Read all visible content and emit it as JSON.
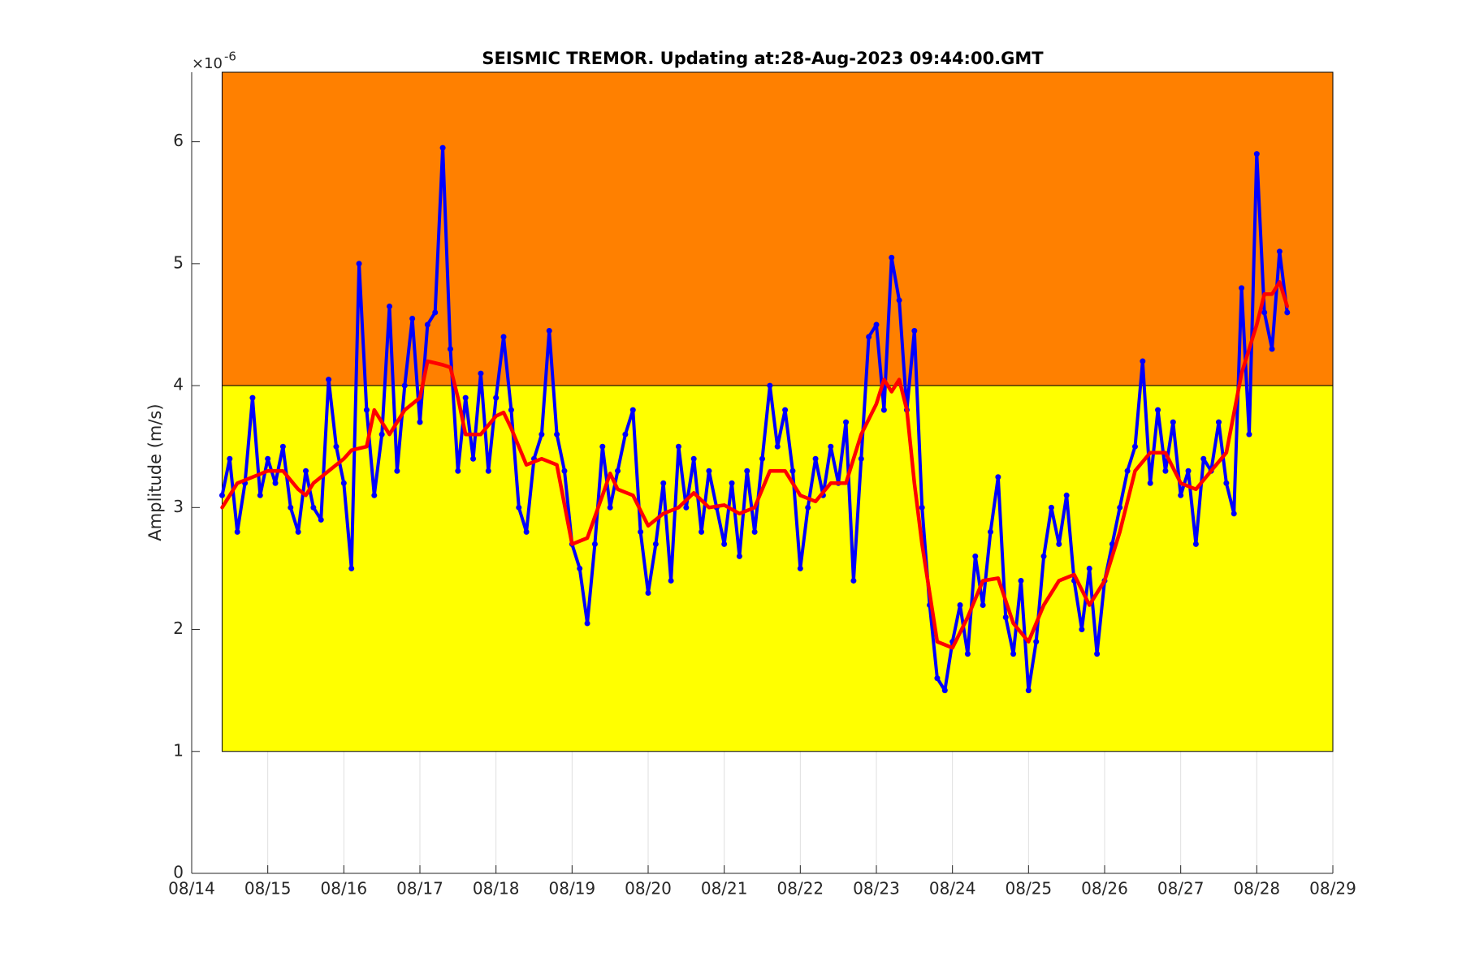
{
  "chart_data": {
    "type": "line",
    "title": "SEISMIC TREMOR. Updating at:28-Aug-2023 09:44:00.GMT",
    "y_label": "Amplitude (m/s)",
    "y_multiplier": {
      "base": "×10",
      "exponent": "-6"
    },
    "xlim": [
      14,
      29
    ],
    "xticks": [
      {
        "value": 14,
        "label": "08/14"
      },
      {
        "value": 15,
        "label": "08/15"
      },
      {
        "value": 16,
        "label": "08/16"
      },
      {
        "value": 17,
        "label": "08/17"
      },
      {
        "value": 18,
        "label": "08/18"
      },
      {
        "value": 19,
        "label": "08/19"
      },
      {
        "value": 20,
        "label": "08/20"
      },
      {
        "value": 21,
        "label": "08/21"
      },
      {
        "value": 22,
        "label": "08/22"
      },
      {
        "value": 23,
        "label": "08/23"
      },
      {
        "value": 24,
        "label": "08/24"
      },
      {
        "value": 25,
        "label": "08/25"
      },
      {
        "value": 26,
        "label": "08/26"
      },
      {
        "value": 27,
        "label": "08/27"
      },
      {
        "value": 28,
        "label": "08/28"
      },
      {
        "value": 29,
        "label": "08/29"
      }
    ],
    "ylim": [
      0,
      6.57
    ],
    "yticks": [
      0,
      1,
      2,
      3,
      4,
      5,
      6
    ],
    "grid": "x",
    "bands": [
      {
        "x_from": 14.4,
        "x_to": 29,
        "y_from": 4,
        "y_to": 6.57,
        "color": "#ff8000"
      },
      {
        "x_from": 14.4,
        "x_to": 29,
        "y_from": 1,
        "y_to": 4,
        "color": "#ffff00"
      }
    ],
    "series": [
      {
        "color": "#0000ff",
        "marker": true,
        "x": [
          14.4,
          14.5,
          14.6,
          14.7,
          14.8,
          14.9,
          15.0,
          15.1,
          15.2,
          15.3,
          15.4,
          15.5,
          15.6,
          15.7,
          15.8,
          15.9,
          16.0,
          16.1,
          16.2,
          16.3,
          16.4,
          16.5,
          16.6,
          16.7,
          16.8,
          16.9,
          17.0,
          17.1,
          17.2,
          17.3,
          17.4,
          17.5,
          17.6,
          17.7,
          17.8,
          17.9,
          18.0,
          18.1,
          18.2,
          18.3,
          18.4,
          18.5,
          18.6,
          18.7,
          18.8,
          18.9,
          19.0,
          19.1,
          19.2,
          19.3,
          19.4,
          19.5,
          19.6,
          19.7,
          19.8,
          19.9,
          20.0,
          20.1,
          20.2,
          20.3,
          20.4,
          20.5,
          20.6,
          20.7,
          20.8,
          20.9,
          21.0,
          21.1,
          21.2,
          21.3,
          21.4,
          21.5,
          21.6,
          21.7,
          21.8,
          21.9,
          22.0,
          22.1,
          22.2,
          22.3,
          22.4,
          22.5,
          22.6,
          22.7,
          22.8,
          22.9,
          23.0,
          23.1,
          23.2,
          23.3,
          23.4,
          23.5,
          23.6,
          23.7,
          23.8,
          23.9,
          24.0,
          24.1,
          24.2,
          24.3,
          24.4,
          24.5,
          24.6,
          24.7,
          24.8,
          24.9,
          25.0,
          25.1,
          25.2,
          25.3,
          25.4,
          25.5,
          25.6,
          25.7,
          25.8,
          25.9,
          26.0,
          26.1,
          26.2,
          26.3,
          26.4,
          26.5,
          26.6,
          26.7,
          26.8,
          26.9,
          27.0,
          27.1,
          27.2,
          27.3,
          27.4,
          27.5,
          27.6,
          27.7,
          27.8,
          27.9,
          28.0,
          28.1,
          28.2,
          28.3,
          28.4
        ],
        "values": [
          3.1,
          3.4,
          2.8,
          3.2,
          3.9,
          3.1,
          3.4,
          3.2,
          3.5,
          3.0,
          2.8,
          3.3,
          3.0,
          2.9,
          4.05,
          3.5,
          3.2,
          2.5,
          5.0,
          3.8,
          3.1,
          3.6,
          4.65,
          3.3,
          4.0,
          4.55,
          3.7,
          4.5,
          4.6,
          5.95,
          4.3,
          3.3,
          3.9,
          3.4,
          4.1,
          3.3,
          3.9,
          4.4,
          3.8,
          3.0,
          2.8,
          3.4,
          3.6,
          4.45,
          3.6,
          3.3,
          2.7,
          2.5,
          2.05,
          2.7,
          3.5,
          3.0,
          3.3,
          3.6,
          3.8,
          2.8,
          2.3,
          2.7,
          3.2,
          2.4,
          3.5,
          3.0,
          3.4,
          2.8,
          3.3,
          3.0,
          2.7,
          3.2,
          2.6,
          3.3,
          2.8,
          3.4,
          4.0,
          3.5,
          3.8,
          3.3,
          2.5,
          3.0,
          3.4,
          3.1,
          3.5,
          3.2,
          3.7,
          2.4,
          3.4,
          4.4,
          4.5,
          3.8,
          5.05,
          4.7,
          3.8,
          4.45,
          3.0,
          2.2,
          1.6,
          1.5,
          1.9,
          2.2,
          1.8,
          2.6,
          2.2,
          2.8,
          3.25,
          2.1,
          1.8,
          2.4,
          1.5,
          1.9,
          2.6,
          3.0,
          2.7,
          3.1,
          2.4,
          2.0,
          2.5,
          1.8,
          2.4,
          2.7,
          3.0,
          3.3,
          3.5,
          4.2,
          3.2,
          3.8,
          3.3,
          3.7,
          3.1,
          3.3,
          2.7,
          3.4,
          3.3,
          3.7,
          3.2,
          2.95,
          4.8,
          3.6,
          5.9,
          4.6,
          4.3,
          5.1,
          4.6
        ]
      },
      {
        "color": "#ff0000",
        "marker": false,
        "x": [
          14.4,
          14.6,
          14.8,
          15.0,
          15.2,
          15.4,
          15.5,
          15.6,
          15.8,
          16.0,
          16.1,
          16.3,
          16.4,
          16.6,
          16.8,
          17.0,
          17.1,
          17.3,
          17.4,
          17.5,
          17.6,
          17.8,
          18.0,
          18.1,
          18.2,
          18.4,
          18.6,
          18.8,
          19.0,
          19.2,
          19.4,
          19.5,
          19.6,
          19.8,
          20.0,
          20.2,
          20.4,
          20.6,
          20.8,
          21.0,
          21.2,
          21.4,
          21.6,
          21.8,
          22.0,
          22.2,
          22.4,
          22.6,
          22.8,
          23.0,
          23.1,
          23.2,
          23.3,
          23.4,
          23.5,
          23.6,
          23.8,
          24.0,
          24.2,
          24.4,
          24.6,
          24.8,
          25.0,
          25.2,
          25.4,
          25.6,
          25.8,
          26.0,
          26.2,
          26.4,
          26.6,
          26.8,
          27.0,
          27.2,
          27.4,
          27.6,
          27.8,
          28.0,
          28.1,
          28.2,
          28.3,
          28.4
        ],
        "values": [
          3.0,
          3.2,
          3.25,
          3.3,
          3.3,
          3.15,
          3.1,
          3.2,
          3.3,
          3.4,
          3.47,
          3.5,
          3.8,
          3.6,
          3.8,
          3.9,
          4.2,
          4.17,
          4.15,
          3.9,
          3.6,
          3.6,
          3.75,
          3.78,
          3.65,
          3.35,
          3.4,
          3.35,
          2.7,
          2.75,
          3.1,
          3.28,
          3.15,
          3.1,
          2.85,
          2.95,
          3.0,
          3.12,
          3.0,
          3.02,
          2.95,
          3.0,
          3.3,
          3.3,
          3.1,
          3.05,
          3.2,
          3.2,
          3.6,
          3.85,
          4.05,
          3.95,
          4.05,
          3.8,
          3.2,
          2.7,
          1.9,
          1.85,
          2.1,
          2.4,
          2.42,
          2.05,
          1.9,
          2.2,
          2.4,
          2.45,
          2.2,
          2.4,
          2.8,
          3.3,
          3.45,
          3.45,
          3.2,
          3.15,
          3.3,
          3.45,
          4.1,
          4.5,
          4.75,
          4.75,
          4.85,
          4.65
        ]
      }
    ]
  }
}
